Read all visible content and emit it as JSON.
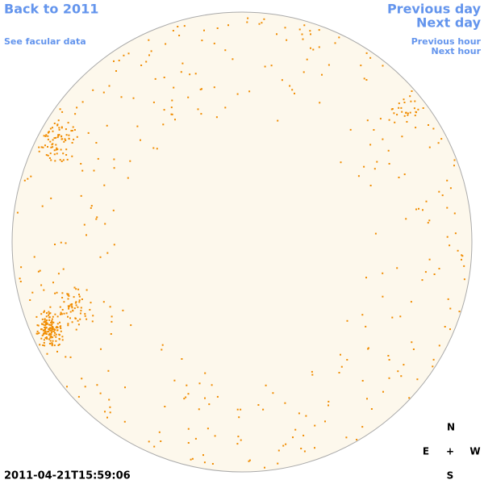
{
  "links": {
    "back": "Back to 2011",
    "facular": "See facular data",
    "prev_day": "Previous day",
    "next_day": "Next day",
    "prev_hour": "Previous hour",
    "next_hour": "Next hour"
  },
  "timestamp": "2011-04-21T15:59:06",
  "compass": {
    "north": "N",
    "east": "E",
    "center": "+",
    "west": "W",
    "south": "S"
  }
}
